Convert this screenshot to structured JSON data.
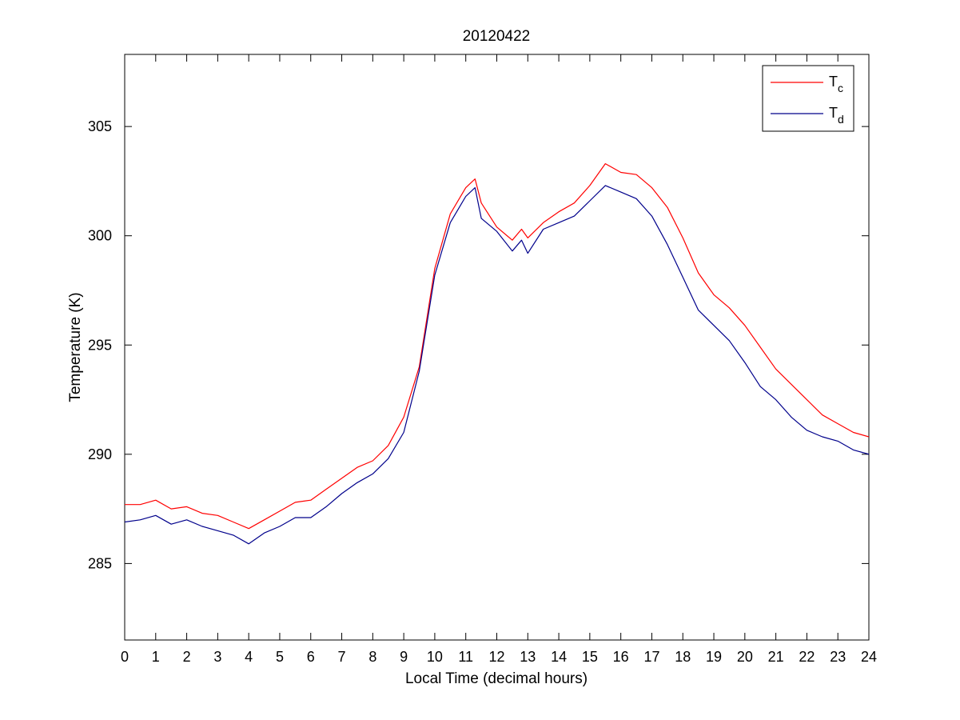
{
  "chart_data": {
    "type": "line",
    "title": "20120422",
    "xlabel": "Local Time (decimal hours)",
    "ylabel": "Temperature (K)",
    "xlim": [
      0,
      24
    ],
    "ylim": [
      281.5,
      308.3
    ],
    "xticks": [
      0,
      1,
      2,
      3,
      4,
      5,
      6,
      7,
      8,
      9,
      10,
      11,
      12,
      13,
      14,
      15,
      16,
      17,
      18,
      19,
      20,
      21,
      22,
      23,
      24
    ],
    "yticks": [
      285,
      290,
      295,
      300,
      305
    ],
    "grid": false,
    "legend_position": "top-right",
    "series": [
      {
        "name": "T",
        "name_subscript": "c",
        "color": "#ff0000",
        "x": [
          0,
          0.5,
          1,
          1.5,
          2,
          2.5,
          3,
          3.5,
          4,
          4.5,
          5,
          5.5,
          6,
          6.5,
          7,
          7.5,
          8,
          8.5,
          9,
          9.5,
          10,
          10.5,
          11,
          11.3,
          11.5,
          12,
          12.5,
          12.8,
          13,
          13.5,
          14,
          14.5,
          15,
          15.5,
          16,
          16.5,
          17,
          17.5,
          18,
          18.5,
          19,
          19.5,
          20,
          20.5,
          21,
          21.5,
          22,
          22.5,
          23,
          23.5,
          24
        ],
        "y": [
          287.7,
          287.7,
          287.9,
          287.5,
          287.6,
          287.3,
          287.2,
          286.9,
          286.6,
          287.0,
          287.4,
          287.8,
          287.9,
          288.4,
          288.9,
          289.4,
          289.7,
          290.4,
          291.7,
          294.0,
          298.5,
          301.0,
          302.2,
          302.6,
          301.5,
          300.4,
          299.8,
          300.3,
          299.9,
          300.6,
          301.1,
          301.5,
          302.3,
          303.3,
          302.9,
          302.8,
          302.2,
          301.3,
          299.9,
          298.3,
          297.3,
          296.7,
          295.9,
          294.9,
          293.9,
          293.2,
          292.5,
          291.8,
          291.4,
          291.0,
          290.8
        ]
      },
      {
        "name": "T",
        "name_subscript": "d",
        "color": "#00008b",
        "x": [
          0,
          0.5,
          1,
          1.5,
          2,
          2.5,
          3,
          3.5,
          4,
          4.5,
          5,
          5.5,
          6,
          6.5,
          7,
          7.5,
          8,
          8.5,
          9,
          9.5,
          10,
          10.5,
          11,
          11.3,
          11.5,
          12,
          12.5,
          12.8,
          13,
          13.5,
          14,
          14.5,
          15,
          15.5,
          16,
          16.5,
          17,
          17.5,
          18,
          18.5,
          19,
          19.5,
          20,
          20.5,
          21,
          21.5,
          22,
          22.5,
          23,
          23.5,
          24
        ],
        "y": [
          286.9,
          287.0,
          287.2,
          286.8,
          287.0,
          286.7,
          286.5,
          286.3,
          285.9,
          286.4,
          286.7,
          287.1,
          287.1,
          287.6,
          288.2,
          288.7,
          289.1,
          289.8,
          291.0,
          293.8,
          298.2,
          300.6,
          301.8,
          302.2,
          300.8,
          300.2,
          299.3,
          299.8,
          299.2,
          300.3,
          300.6,
          300.9,
          301.6,
          302.3,
          302.0,
          301.7,
          300.9,
          299.6,
          298.1,
          296.6,
          295.9,
          295.2,
          294.2,
          293.1,
          292.5,
          291.7,
          291.1,
          290.8,
          290.6,
          290.2,
          290.0
        ]
      }
    ]
  }
}
